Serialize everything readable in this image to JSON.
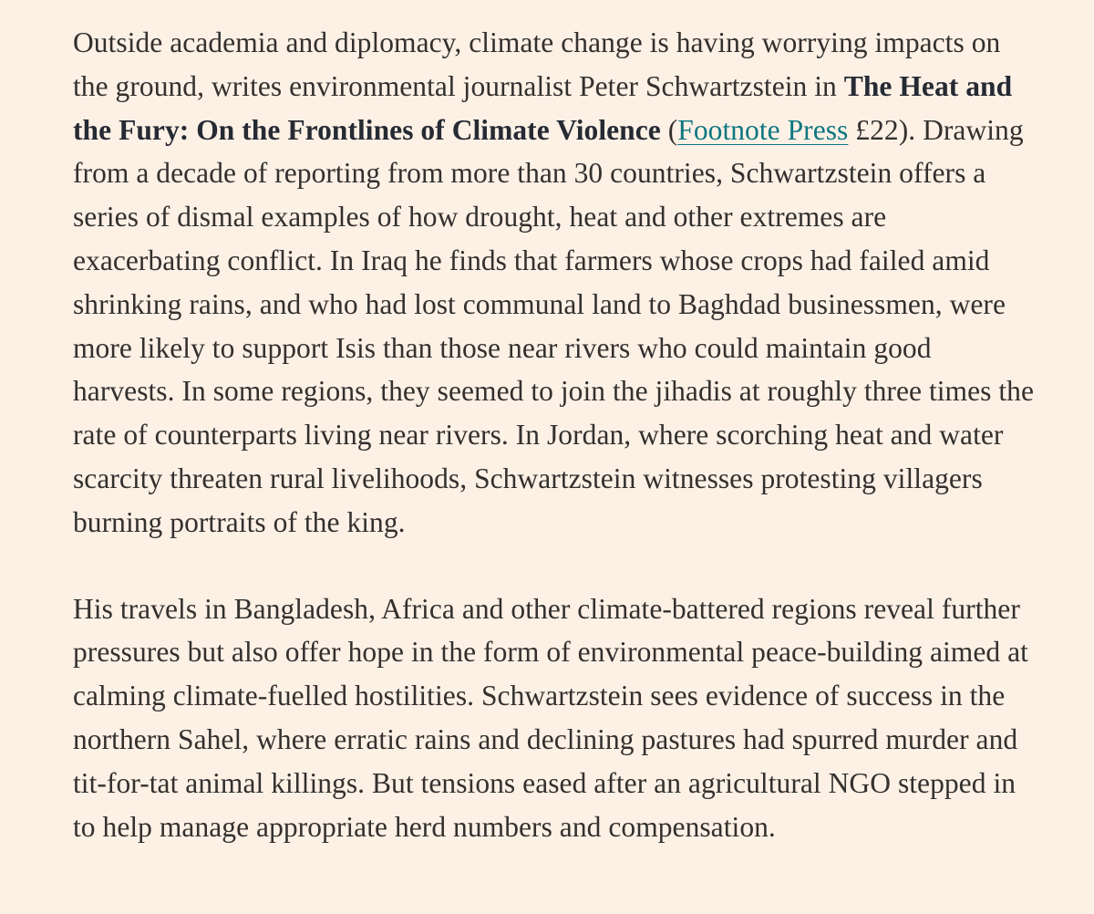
{
  "paragraph_1": {
    "text_before_title": "Outside academia and diplomacy, climate change is having worrying impacts on the ground, writes environmental journalist Peter Schwartzstein in ",
    "book_title": "The Heat and the Fury: On the Frontlines of Climate Violence",
    "open_paren": " (",
    "publisher_link": "Footnote Press",
    "text_after_link": " £22). Drawing from a decade of reporting from more than 30 countries, Schwartzstein offers a series of dismal examples of how drought, heat and other extremes are exacerbating conflict. In Iraq he finds that farmers whose crops had failed amid shrinking rains, and who had lost communal land to Baghdad businessmen, were more likely to support Isis than those near rivers who could maintain good harvests. In some regions, they seemed to join the jihadis at roughly three times the rate of counterparts living near rivers. In Jordan, where scorching heat and water scarcity threaten rural livelihoods, Schwartzstein witnesses protesting villagers burning portraits of the king."
  },
  "paragraph_2": {
    "text": "His travels in Bangladesh, Africa and other climate-battered regions reveal further pressures but also offer hope in the form of environmental peace-building aimed at calming climate-fuelled hostilities. Schwartzstein sees evidence of success in the northern Sahel, where erratic rains and declining pastures had spurred murder and tit-for-tat animal killings. But tensions eased after an agricultural NGO stepped in to help manage appropriate herd numbers and compensation."
  },
  "colors": {
    "background": "#fdf1e6",
    "text": "#33302e",
    "link": "#0d7680"
  }
}
